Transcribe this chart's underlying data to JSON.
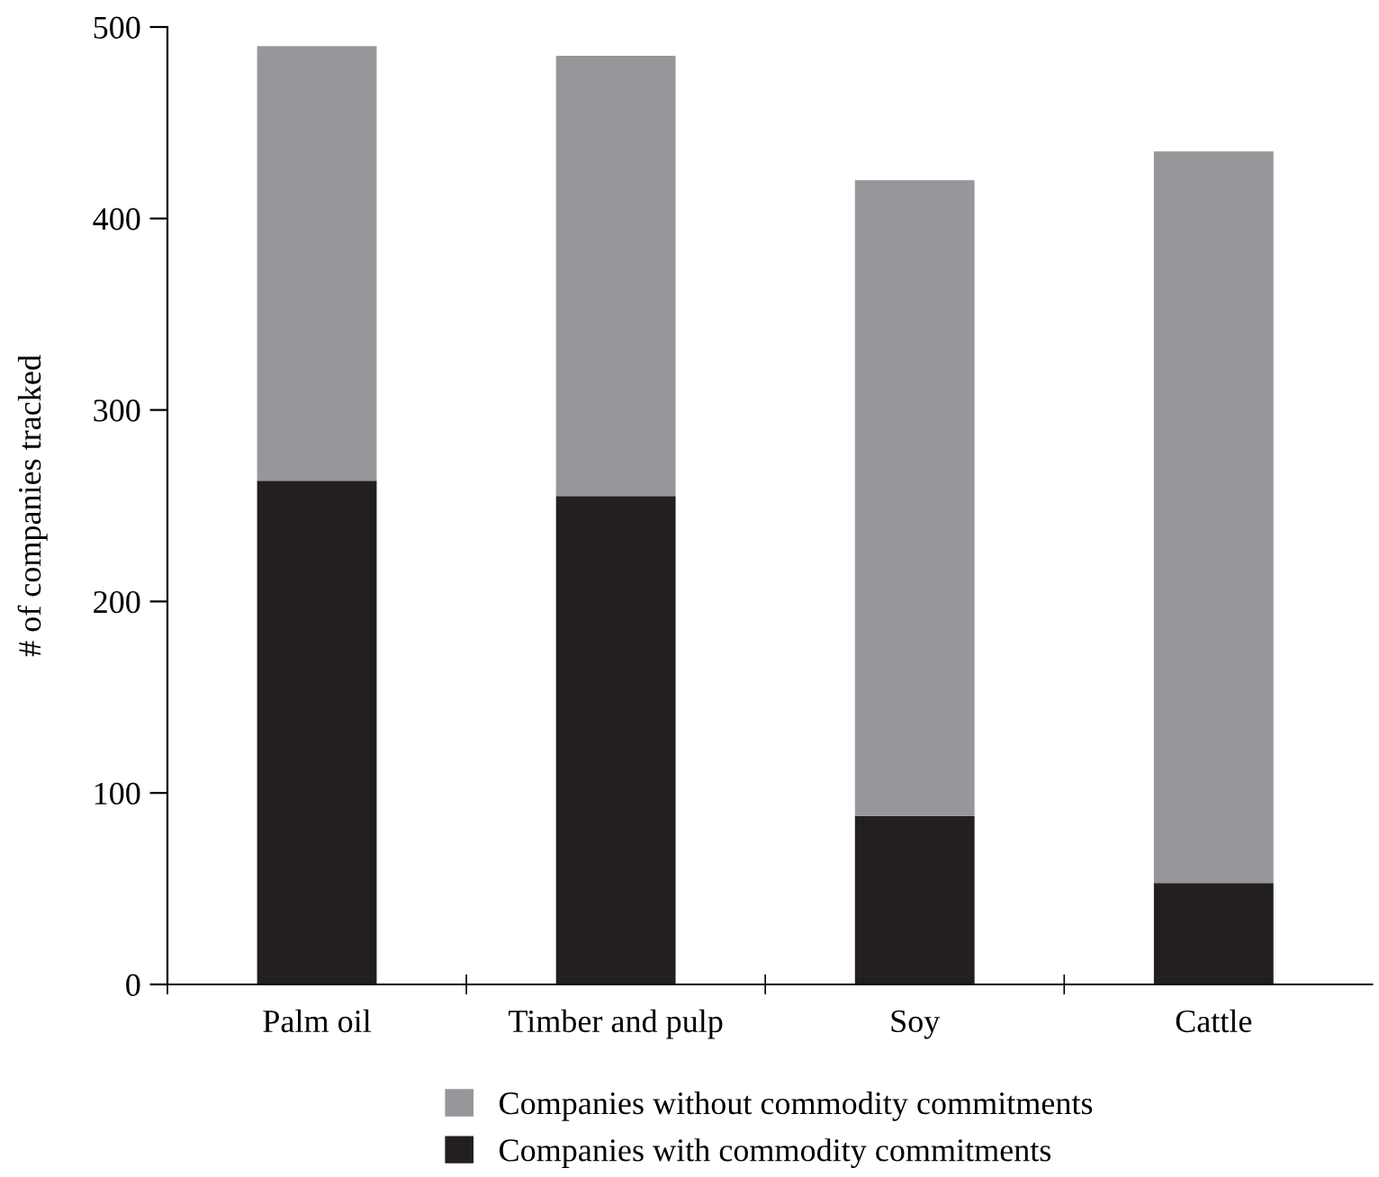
{
  "chart_data": {
    "type": "bar",
    "stacked": true,
    "ylabel": "# of companies tracked",
    "categories": [
      "Palm oil",
      "Timber and pulp",
      "Soy",
      "Cattle"
    ],
    "series": [
      {
        "name": "Companies with commodity commitments",
        "color": "#231f20",
        "values": [
          263,
          255,
          88,
          53
        ]
      },
      {
        "name": "Companies without commodity commitments",
        "color": "#96979b",
        "values": [
          227,
          230,
          332,
          382
        ]
      }
    ],
    "ylim": [
      0,
      500
    ],
    "yticks": [
      0,
      100,
      200,
      300,
      400,
      500
    ],
    "grid": false,
    "legend": "bottom"
  }
}
